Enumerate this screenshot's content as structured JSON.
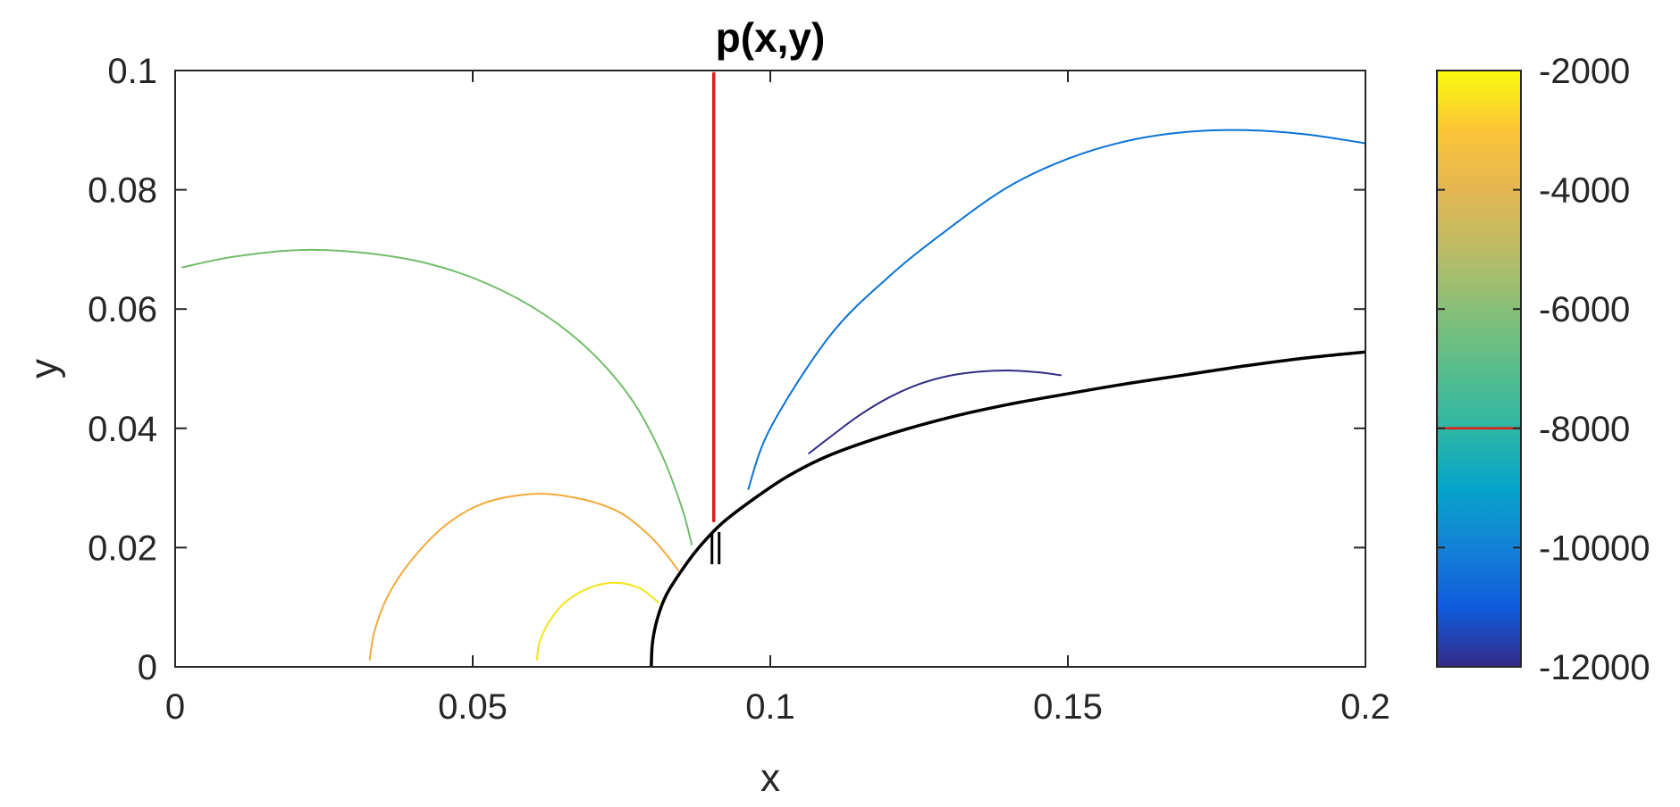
{
  "chart_data": {
    "type": "line",
    "title": "p(x,y)",
    "xlabel": "x",
    "ylabel": "y",
    "xlim": [
      0,
      0.2
    ],
    "ylim": [
      0,
      0.1
    ],
    "xticks": [
      0,
      0.05,
      0.1,
      0.15,
      0.2
    ],
    "xtick_labels": [
      "0",
      "0.05",
      "0.1",
      "0.15",
      "0.2"
    ],
    "yticks": [
      0,
      0.02,
      0.04,
      0.06,
      0.08,
      0.1
    ],
    "ytick_labels": [
      "0",
      "0.02",
      "0.04",
      "0.06",
      "0.08",
      "0.1"
    ],
    "grid": false,
    "colorbar": {
      "colormap": "parula",
      "range": [
        -12000,
        -2000
      ],
      "ticks": [
        -2000,
        -4000,
        -6000,
        -8000,
        -10000,
        -12000
      ],
      "tick_labels": [
        "-2000",
        "-4000",
        "-6000",
        "-8000",
        "-10000",
        "-12000"
      ],
      "marker_level": -8000,
      "marker_color": "#e41a1c"
    },
    "boundary_curve": {
      "color": "#000000",
      "points": [
        [
          0.08,
          0.0
        ],
        [
          0.0802,
          0.004
        ],
        [
          0.081,
          0.008
        ],
        [
          0.0825,
          0.012
        ],
        [
          0.085,
          0.016
        ],
        [
          0.088,
          0.02
        ],
        [
          0.0918,
          0.024
        ],
        [
          0.097,
          0.028
        ],
        [
          0.103,
          0.032
        ],
        [
          0.11,
          0.0355
        ],
        [
          0.12,
          0.039
        ],
        [
          0.13,
          0.0418
        ],
        [
          0.14,
          0.044
        ],
        [
          0.15,
          0.0458
        ],
        [
          0.16,
          0.0475
        ],
        [
          0.17,
          0.049
        ],
        [
          0.18,
          0.0505
        ],
        [
          0.19,
          0.0518
        ],
        [
          0.2,
          0.0528
        ]
      ]
    },
    "cut_line": {
      "color": "#e41a1c",
      "points": [
        [
          0.0905,
          0.0245
        ],
        [
          0.0905,
          0.0995
        ]
      ]
    },
    "tick_marks": {
      "color": "#000000",
      "segments": [
        [
          [
            0.0902,
            0.0172
          ],
          [
            0.0902,
            0.0226
          ]
        ],
        [
          [
            0.0914,
            0.0172
          ],
          [
            0.0914,
            0.0226
          ]
        ]
      ]
    },
    "series": [
      {
        "level": -2000,
        "color": "#f5e419",
        "points": [
          [
            0.0608,
            0.0012
          ],
          [
            0.0612,
            0.004
          ],
          [
            0.0628,
            0.0075
          ],
          [
            0.0655,
            0.0108
          ],
          [
            0.0695,
            0.0132
          ],
          [
            0.0738,
            0.0141
          ],
          [
            0.078,
            0.0132
          ],
          [
            0.0812,
            0.0108
          ]
        ]
      },
      {
        "level": -3500,
        "color": "#f2a93a",
        "points": [
          [
            0.0327,
            0.0012
          ],
          [
            0.0335,
            0.006
          ],
          [
            0.0358,
            0.012
          ],
          [
            0.0398,
            0.018
          ],
          [
            0.0455,
            0.0238
          ],
          [
            0.052,
            0.0275
          ],
          [
            0.0605,
            0.029
          ],
          [
            0.068,
            0.0282
          ],
          [
            0.0745,
            0.026
          ],
          [
            0.0795,
            0.0222
          ],
          [
            0.0828,
            0.0185
          ],
          [
            0.0845,
            0.0162
          ]
        ]
      },
      {
        "level": -6000,
        "color": "#72bc6a",
        "points": [
          [
            0.0012,
            0.067
          ],
          [
            0.01,
            0.0688
          ],
          [
            0.021,
            0.0699
          ],
          [
            0.032,
            0.0694
          ],
          [
            0.043,
            0.0675
          ],
          [
            0.053,
            0.064
          ],
          [
            0.062,
            0.0591
          ],
          [
            0.07,
            0.0527
          ],
          [
            0.0768,
            0.0447
          ],
          [
            0.0818,
            0.0355
          ],
          [
            0.0852,
            0.0265
          ],
          [
            0.0868,
            0.0205
          ]
        ]
      },
      {
        "level": -10000,
        "color": "#0972d6",
        "points": [
          [
            0.0963,
            0.0298
          ],
          [
            0.1,
            0.04
          ],
          [
            0.11,
            0.0555
          ],
          [
            0.12,
            0.0655
          ],
          [
            0.13,
            0.0735
          ],
          [
            0.14,
            0.0805
          ],
          [
            0.15,
            0.0852
          ],
          [
            0.16,
            0.0882
          ],
          [
            0.17,
            0.0897
          ],
          [
            0.18,
            0.09
          ],
          [
            0.19,
            0.0893
          ],
          [
            0.2,
            0.0878
          ]
        ]
      },
      {
        "level": -12000,
        "color": "#312c82",
        "points": [
          [
            0.1065,
            0.0358
          ],
          [
            0.11,
            0.0385
          ],
          [
            0.115,
            0.0422
          ],
          [
            0.12,
            0.0452
          ],
          [
            0.125,
            0.0474
          ],
          [
            0.13,
            0.0488
          ],
          [
            0.135,
            0.0495
          ],
          [
            0.14,
            0.0497
          ],
          [
            0.145,
            0.0494
          ],
          [
            0.1488,
            0.0489
          ]
        ]
      }
    ]
  }
}
